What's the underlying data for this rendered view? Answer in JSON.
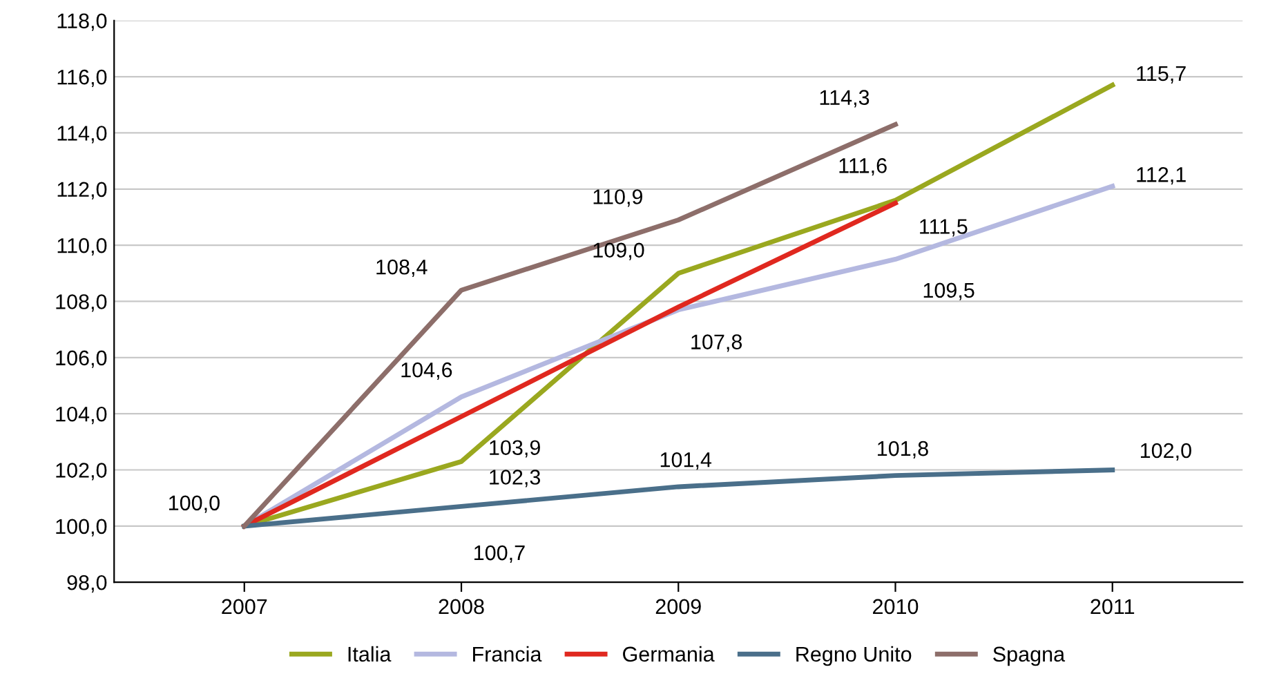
{
  "chart_data": {
    "type": "line",
    "categories": [
      "2007",
      "2008",
      "2009",
      "2010",
      "2011"
    ],
    "series": [
      {
        "name": "Italia",
        "color": "#9aa81f",
        "values": [
          100.0,
          102.3,
          109.0,
          111.6,
          115.7
        ],
        "value_labels": [
          "100,0",
          "102,3",
          "109,0",
          "111,6",
          "115,7"
        ]
      },
      {
        "name": "Francia",
        "color": "#b4b8e0",
        "values": [
          100.0,
          104.6,
          107.7,
          109.5,
          112.1
        ],
        "value_labels": [
          null,
          "104,6",
          null,
          "109,5",
          "112,1"
        ]
      },
      {
        "name": "Germania",
        "color": "#e0281f",
        "values": [
          100.0,
          103.9,
          107.8,
          111.5,
          null
        ],
        "value_labels": [
          null,
          "103,9",
          "107,8",
          "111,5",
          null
        ]
      },
      {
        "name": "Regno Unito",
        "color": "#4a6f8a",
        "values": [
          100.0,
          100.7,
          101.4,
          101.8,
          102.0
        ],
        "value_labels": [
          null,
          "100,7",
          "101,4",
          "101,8",
          "102,0"
        ]
      },
      {
        "name": "Spagna",
        "color": "#8d6e6a",
        "values": [
          100.0,
          108.4,
          110.9,
          114.3,
          null
        ],
        "value_labels": [
          null,
          "108,4",
          "110,9",
          "114,3",
          null
        ]
      }
    ],
    "ylim": [
      98,
      118
    ],
    "yticks": [
      {
        "value": 98,
        "label": "98,0"
      },
      {
        "value": 100,
        "label": "100,0"
      },
      {
        "value": 102,
        "label": "102,0"
      },
      {
        "value": 104,
        "label": "104,0"
      },
      {
        "value": 106,
        "label": "106,0"
      },
      {
        "value": 108,
        "label": "108,0"
      },
      {
        "value": 110,
        "label": "110,0"
      },
      {
        "value": 112,
        "label": "112,0"
      },
      {
        "value": 114,
        "label": "114,0"
      },
      {
        "value": 116,
        "label": "116,0"
      },
      {
        "value": 118,
        "label": "118,0"
      }
    ],
    "grid": "y",
    "legend": "bottom",
    "marker": "none",
    "line_style": "solid"
  }
}
